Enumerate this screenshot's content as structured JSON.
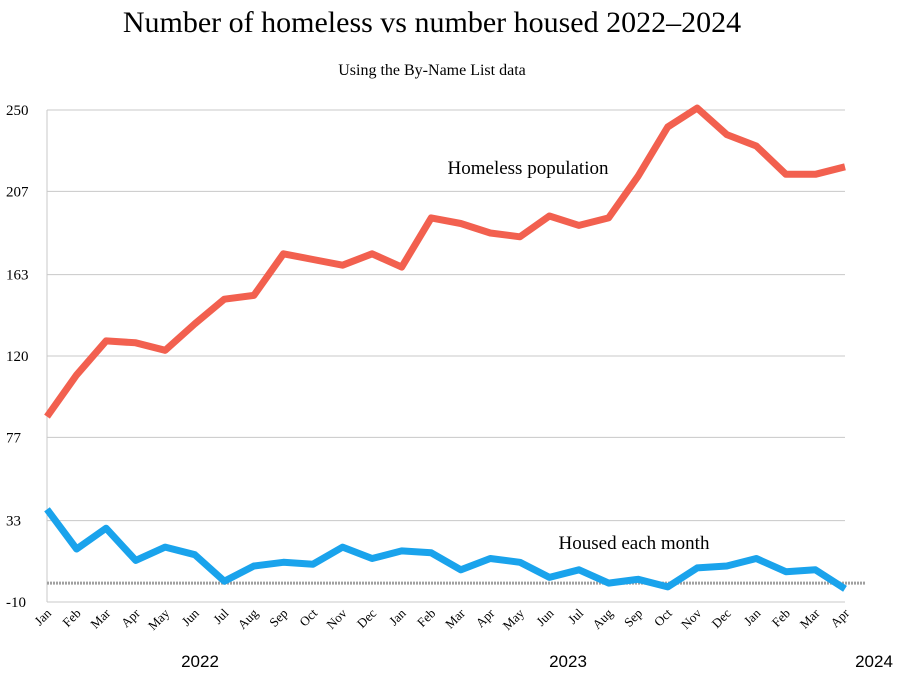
{
  "chart_data": {
    "type": "line",
    "title": "Number of homeless vs number housed  2022–2024",
    "subtitle": "Using the By-Name List data",
    "ylim": [
      -10,
      250
    ],
    "yticks": [
      "-10",
      "33",
      "77",
      "120",
      "163",
      "207",
      "250"
    ],
    "ytick_values": [
      -10,
      33,
      77,
      120,
      163,
      207,
      250
    ],
    "grid": true,
    "reference_line": 0,
    "categories": [
      "Jan",
      "Feb",
      "Mar",
      "Apr",
      "May",
      "Jun",
      "Jul",
      "Aug",
      "Sep",
      "Oct",
      "Nov",
      "Dec",
      "Jan",
      "Feb",
      "Mar",
      "Apr",
      "May",
      "Jun",
      "Jul",
      "Aug",
      "Sep",
      "Oct",
      "Nov",
      "Dec",
      "Jan",
      "Feb",
      "Mar",
      "Apr"
    ],
    "years": [
      {
        "label": "2022",
        "start_index": 0
      },
      {
        "label": "2023",
        "start_index": 12
      },
      {
        "label": "2024",
        "start_index": 24
      }
    ],
    "series": [
      {
        "name": "Homeless population",
        "color": "#f2604f",
        "values": [
          88,
          110,
          128,
          127,
          123,
          137,
          150,
          152,
          174,
          171,
          168,
          174,
          167,
          193,
          190,
          185,
          183,
          194,
          189,
          193,
          215,
          241,
          251,
          237,
          231,
          216,
          216,
          220
        ]
      },
      {
        "name": "Housed each month",
        "color": "#1aa3ec",
        "values": [
          39,
          18,
          29,
          12,
          19,
          15,
          1,
          9,
          11,
          10,
          19,
          13,
          17,
          16,
          7,
          13,
          11,
          3,
          7,
          0,
          2,
          -2,
          8,
          9,
          13,
          6,
          7,
          -3
        ]
      }
    ]
  }
}
